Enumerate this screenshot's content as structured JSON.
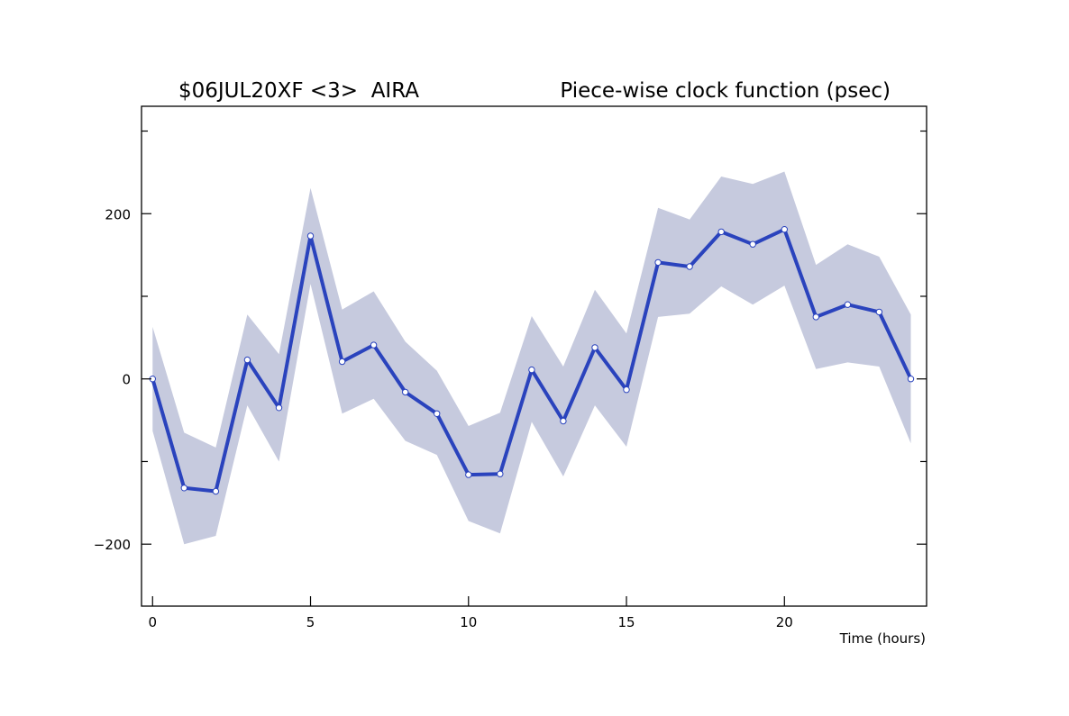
{
  "chart_data": {
    "type": "line",
    "title_left": "$06JUL20XF <3>  AIRA",
    "title_right": "Piece-wise clock function (psec)",
    "xlabel": "Time (hours)",
    "ylabel": "",
    "xlim": [
      -0.35,
      24.5
    ],
    "ylim": [
      -275,
      330
    ],
    "x_ticks": [
      0,
      5,
      10,
      15,
      20
    ],
    "y_ticks": [
      -200,
      0,
      200
    ],
    "x_minor_ticks": [],
    "y_minor_ticks": [
      -100,
      100,
      300
    ],
    "grid": false,
    "legend": "none",
    "colors": {
      "line": "#2a43bd",
      "band": "#c6cade",
      "marker_fill": "#ffffff",
      "marker_edge": "#2a43bd",
      "axis": "#000000"
    },
    "x": [
      0,
      1,
      2,
      3,
      4,
      5,
      6,
      7,
      8,
      9,
      10,
      11,
      12,
      13,
      14,
      15,
      16,
      17,
      18,
      19,
      20,
      21,
      22,
      23,
      24
    ],
    "series": [
      {
        "values": [
          0,
          -132,
          -136,
          23,
          -35,
          173,
          21,
          41,
          -16,
          -42,
          -116,
          -115,
          11,
          -51,
          38,
          -13,
          141,
          136,
          178,
          163,
          181,
          75,
          90,
          81,
          0
        ]
      }
    ],
    "band_upper": [
      63,
      -65,
      -83,
      78,
      30,
      231,
      84,
      106,
      45,
      10,
      -57,
      -41,
      76,
      15,
      108,
      55,
      207,
      193,
      245,
      236,
      251,
      138,
      163,
      148,
      78
    ],
    "band_lower": [
      -63,
      -200,
      -190,
      -32,
      -100,
      115,
      -42,
      -24,
      -75,
      -92,
      -172,
      -187,
      -52,
      -118,
      -32,
      -82,
      75,
      79,
      112,
      90,
      113,
      12,
      20,
      15,
      -78
    ]
  }
}
